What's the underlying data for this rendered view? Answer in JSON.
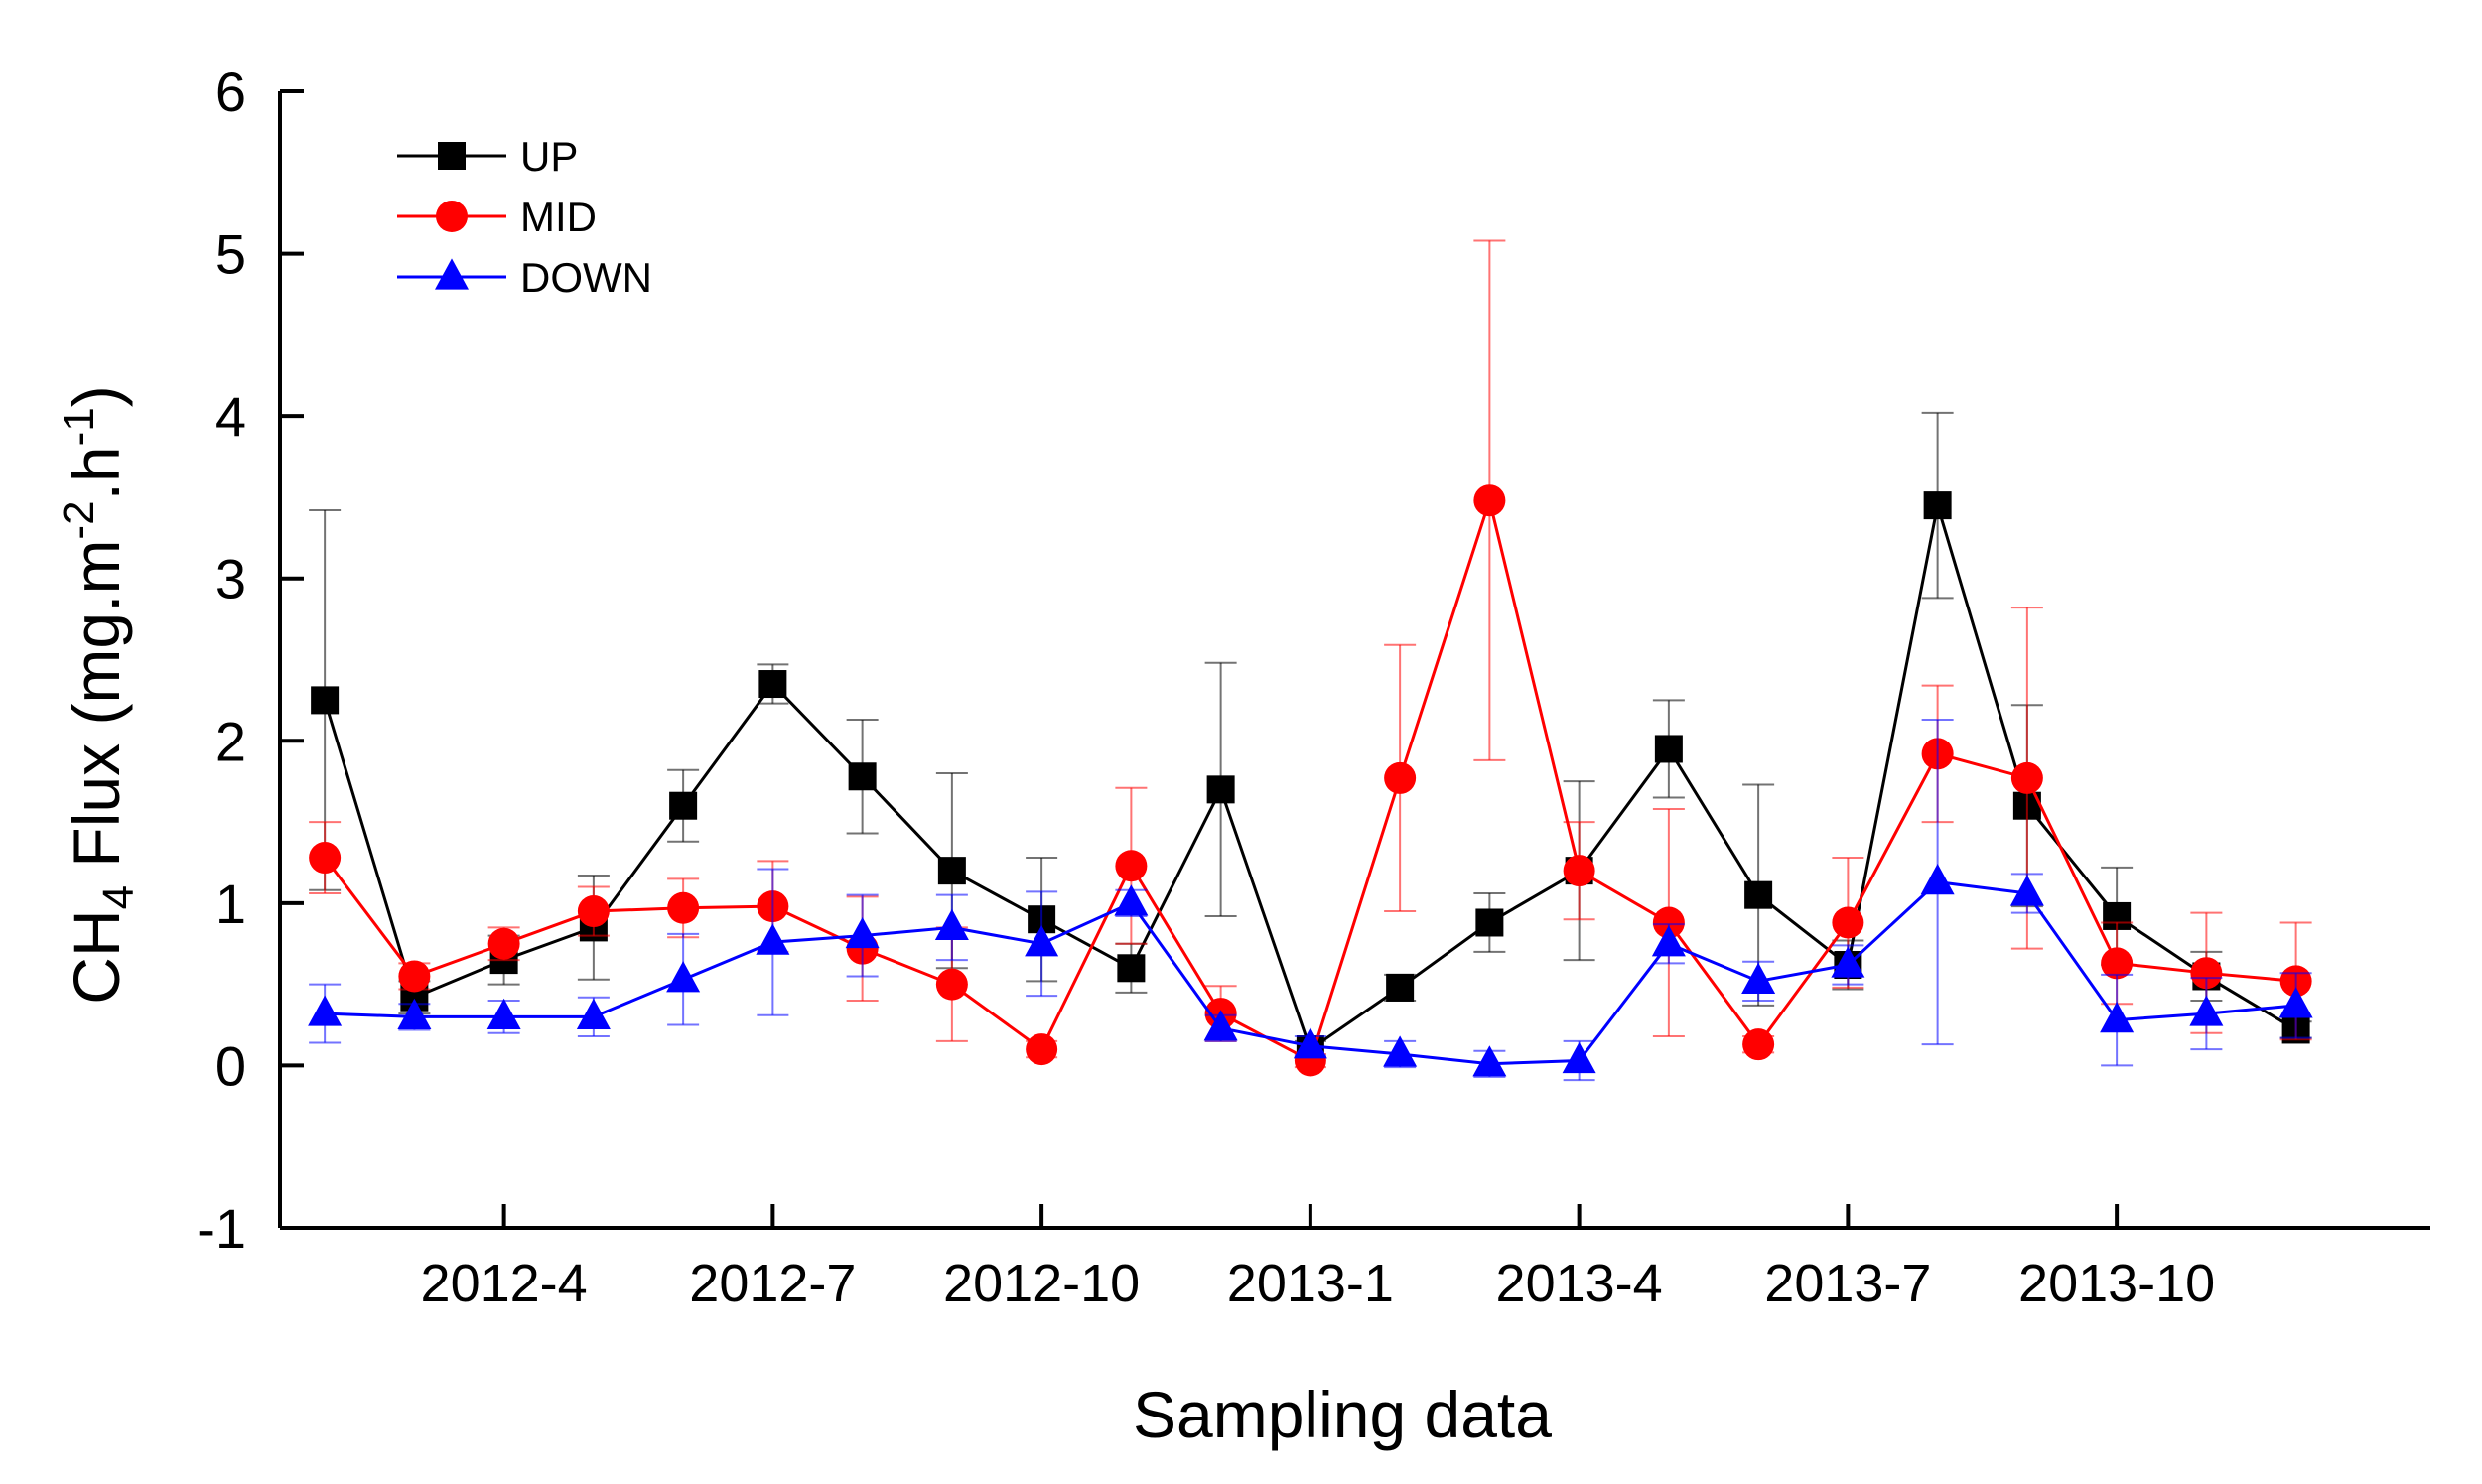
{
  "chart_data": {
    "type": "line",
    "title": "",
    "xlabel": "Sampling data",
    "ylabel_main": "CH",
    "ylabel_sub": "4",
    "ylabel_rest": " Flux (mg.m",
    "ylabel_sup1": "-2",
    "ylabel_mid": ".h",
    "ylabel_sup2": "-1",
    "ylabel_end": ")",
    "xlim": [
      0.5,
      24.5
    ],
    "ylim": [
      -1,
      6
    ],
    "yticks": [
      -1,
      0,
      1,
      2,
      3,
      4,
      5,
      6
    ],
    "xticks": [
      {
        "x": 3,
        "label": "2012-4"
      },
      {
        "x": 6,
        "label": "2012-7"
      },
      {
        "x": 9,
        "label": "2012-10"
      },
      {
        "x": 12,
        "label": "2013-1"
      },
      {
        "x": 15,
        "label": "2013-4"
      },
      {
        "x": 18,
        "label": "2013-7"
      },
      {
        "x": 21,
        "label": "2013-10"
      }
    ],
    "x": [
      1,
      2,
      3,
      4,
      5,
      6,
      7,
      8,
      9,
      10,
      11,
      12,
      13,
      14,
      15,
      16,
      17,
      18,
      19,
      20,
      21,
      22,
      23
    ],
    "legend_position": "top-left",
    "series": [
      {
        "name": "UP",
        "color": "#000000",
        "marker": "square",
        "values": [
          2.25,
          0.42,
          0.65,
          0.85,
          1.6,
          2.35,
          1.78,
          1.2,
          0.9,
          0.6,
          1.7,
          0.1,
          0.48,
          0.88,
          1.2,
          1.95,
          1.05,
          0.62,
          3.45,
          1.6,
          0.92,
          0.55,
          0.22
        ],
        "errors": [
          1.17,
          0.1,
          0.15,
          0.32,
          0.22,
          0.12,
          0.35,
          0.6,
          0.38,
          0.15,
          0.78,
          0.05,
          0.08,
          0.18,
          0.55,
          0.3,
          0.68,
          0.15,
          0.57,
          0.62,
          0.3,
          0.15,
          0.05
        ]
      },
      {
        "name": "MID",
        "color": "#ff0000",
        "marker": "circle",
        "values": [
          1.28,
          0.55,
          0.75,
          0.95,
          0.97,
          0.98,
          0.72,
          0.5,
          0.1,
          1.23,
          0.32,
          0.03,
          1.77,
          3.48,
          1.2,
          0.88,
          0.13,
          0.88,
          1.92,
          1.77,
          0.63,
          0.57,
          0.52
        ],
        "errors": [
          0.22,
          0.08,
          0.1,
          0.15,
          0.18,
          0.28,
          0.32,
          0.35,
          0.05,
          0.48,
          0.17,
          0.04,
          0.82,
          1.6,
          0.3,
          0.7,
          0.05,
          0.4,
          0.42,
          1.05,
          0.25,
          0.37,
          0.36
        ]
      },
      {
        "name": "DOWN",
        "color": "#0000ff",
        "marker": "triangle",
        "values": [
          0.32,
          0.3,
          0.3,
          0.3,
          0.53,
          0.76,
          0.8,
          0.85,
          0.75,
          1.0,
          0.23,
          0.12,
          0.07,
          0.01,
          0.03,
          0.75,
          0.52,
          0.62,
          1.13,
          1.06,
          0.28,
          0.32,
          0.37
        ],
        "errors": [
          0.18,
          0.08,
          0.1,
          0.12,
          0.28,
          0.45,
          0.25,
          0.2,
          0.32,
          0.08,
          0.08,
          0.06,
          0.08,
          0.08,
          0.12,
          0.12,
          0.12,
          0.12,
          1.0,
          0.12,
          0.28,
          0.22,
          0.2
        ]
      }
    ]
  }
}
